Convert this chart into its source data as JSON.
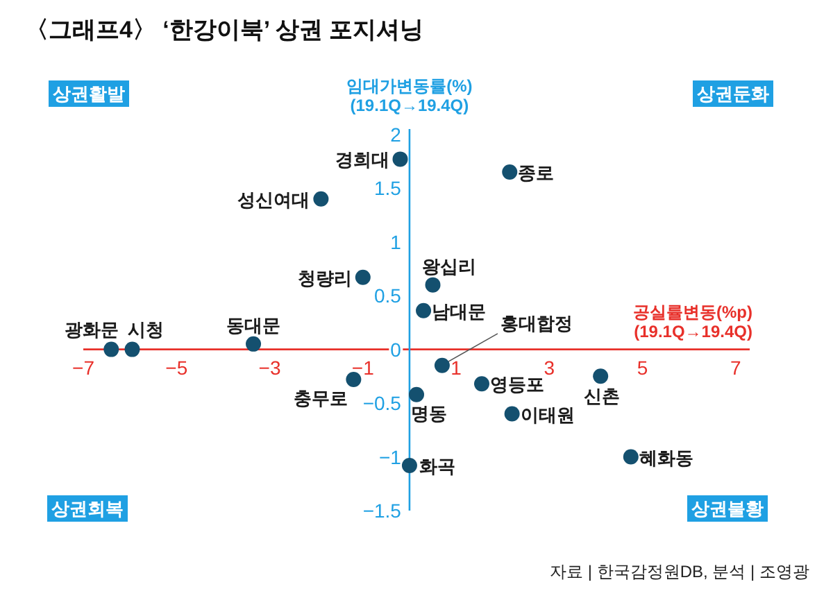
{
  "chart_data": {
    "type": "scatter",
    "title": "〈그래프4〉 ‘한강이북’ 상권 포지셔닝",
    "xlabel": "공실률변동(%p)\n(19.1Q→19.4Q)",
    "ylabel": "임대가변동률(%)\n(19.1Q→19.4Q)",
    "annotations": [
      "상권활발",
      "상권둔화",
      "상권회복",
      "상권불황",
      "자료 | 한국감정원DB, 분석 | 조영광"
    ],
    "series": [
      {
        "color": "#14506f",
        "x": [
          -6.4,
          -5.95,
          -3.35,
          -1.0,
          -1.9,
          -0.2,
          2.15,
          0.5,
          0.3,
          0.7,
          -1.2,
          0.15,
          0.0,
          1.55,
          2.2,
          4.1,
          4.75
        ],
        "values": [
          0.0,
          0.0,
          0.05,
          0.67,
          1.4,
          1.77,
          1.65,
          0.6,
          0.36,
          -0.15,
          -0.28,
          -0.42,
          -1.08,
          -0.32,
          -0.6,
          -0.25,
          -1.0
        ],
        "value_labels": [
          "광화문",
          "시청",
          "동대문",
          "청량리",
          "성신여대",
          "경희대",
          "종로",
          "왕십리",
          "남대문",
          "홍대합정",
          "충무로",
          "명동",
          "화곡",
          "영등포",
          "이태원",
          "신촌",
          "혜화동"
        ]
      }
    ],
    "xlim": [
      -7,
      7.3
    ],
    "ylim": [
      -1.5,
      2.05
    ],
    "xticks": [
      {
        "value": -7,
        "label": "−7"
      },
      {
        "value": -5,
        "label": "−5"
      },
      {
        "value": -3,
        "label": "−3"
      },
      {
        "value": -1,
        "label": "−1"
      },
      1,
      3,
      5,
      7
    ],
    "yticks": [
      2,
      1.5,
      1,
      0.5,
      0,
      {
        "value": -0.5,
        "label": "−0.5"
      },
      {
        "value": -1,
        "label": "−1"
      },
      {
        "value": -1.5,
        "label": "−1.5"
      }
    ],
    "grid": false,
    "marker": "circle"
  }
}
